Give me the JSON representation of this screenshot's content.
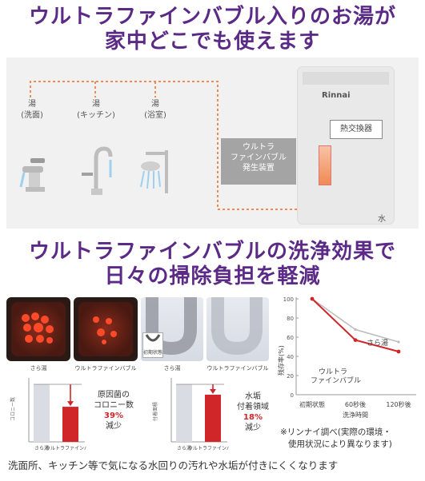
{
  "headline1": {
    "line1": "ウルトラファインバブル入りのお湯が",
    "line2": "家中どこでも使えます"
  },
  "diagram": {
    "brand": "Rinnai",
    "faucets": [
      {
        "line1": "湯",
        "line2": "(洗面)"
      },
      {
        "line1": "湯",
        "line2": "(キッチン)"
      },
      {
        "line1": "湯",
        "line2": "(浴室)"
      }
    ],
    "fb_generator": {
      "line1": "ウルトラ",
      "line2": "ファインバブル",
      "line3": "発生装置"
    },
    "heat_exchanger": "熱交換器",
    "water": "水",
    "colors": {
      "hot_pipe": "#f08a55",
      "cold_pipe": "#8cc4e8",
      "brand_purple": "#5b2a86",
      "accent_red": "#d0262a"
    }
  },
  "headline2": {
    "line1": "ウルトラファインバブルの洗浄効果で",
    "line2": "日々の掃除負担を軽減"
  },
  "photos": {
    "petri_left": "さら湯",
    "petri_right": "ウルトラファインバブル",
    "pipe_inset": "初期状態",
    "pipe_left": "さら湯",
    "pipe_right": "ウルトラファインバブル"
  },
  "bacteria_chart": {
    "ylabel": "コロニー数",
    "categories": [
      "さら湯",
      "ウルトラファインバブル"
    ],
    "values": [
      100,
      61
    ],
    "note": {
      "line1": "原因菌の",
      "line2": "コロニー数",
      "pct": "39%",
      "line3": "減少"
    }
  },
  "scale_chart": {
    "ylabel": "付着面積",
    "categories": [
      "さら湯",
      "ウルトラファインバブル"
    ],
    "values": [
      100,
      82
    ],
    "note": {
      "line1": "水垢",
      "line2": "付着領域",
      "pct": "18%",
      "line3": "減少"
    }
  },
  "chart_data": {
    "type": "line",
    "x": [
      "初期状態",
      "60秒後",
      "120秒後"
    ],
    "xlabel": "洗浄時間",
    "ylabel": "残存率(%)",
    "yticks": [
      0,
      20,
      40,
      60,
      80,
      100
    ],
    "ylim": [
      0,
      100
    ],
    "series": [
      {
        "name": "さら湯",
        "values": [
          100,
          68,
          55
        ],
        "color": "#bdbdbd"
      },
      {
        "name": "ウルトラファインバブル",
        "values": [
          100,
          57,
          45
        ],
        "color": "#d0262a"
      }
    ],
    "series_label_1": "さら湯",
    "series_label_2a": "ウルトラ",
    "series_label_2b": "ファインバブル"
  },
  "footnote": {
    "line1": "※リンナイ調べ(実際の環境・",
    "line2": "使用状況により異なります)"
  },
  "bottom": "洗面所、キッチン等で気になる水回りの汚れや水垢が付きにくくなります"
}
